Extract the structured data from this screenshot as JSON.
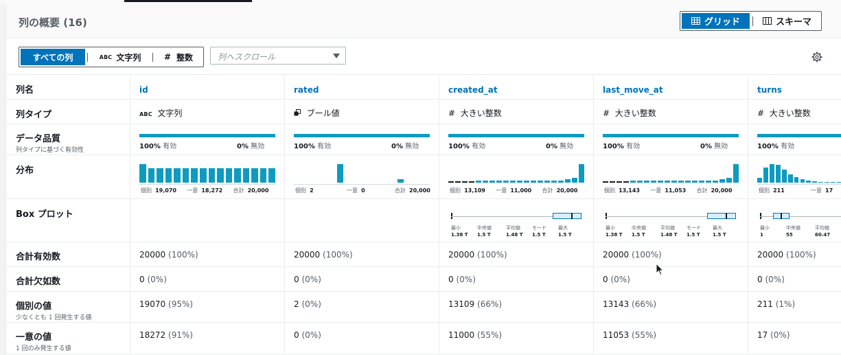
{
  "header": {
    "title": "列の概要 (16)",
    "view_grid": "グリッド",
    "view_schema": "スキーマ"
  },
  "filter": {
    "all": "すべての列",
    "string_icon": "ABC",
    "string": "文字列",
    "int_icon": "#",
    "int": "整数",
    "scroll_placeholder": "列へスクロール"
  },
  "row_labels": {
    "name": "列名",
    "type": "列タイプ",
    "quality": "データ品質",
    "quality_sub": "列タイプに基づく有効性",
    "distribution": "分布",
    "boxplot": "Box プロット",
    "total_valid": "合計有効数",
    "total_missing": "合計欠如数",
    "distinct": "個別の値",
    "distinct_sub": "少なくとも 1 回発生する値",
    "unique": "一意の値",
    "unique_sub": "1 回のみ発生する値"
  },
  "quality_labels": {
    "valid": "有効",
    "invalid": "無効"
  },
  "dist_labels": {
    "distinct": "個別",
    "unique": "一意",
    "total": "合計"
  },
  "box_labels": {
    "min": "最小",
    "median": "中央値",
    "mean": "平均値",
    "mode": "モード",
    "max": "最大"
  },
  "columns": [
    {
      "name": "id",
      "type_icon": "ABC",
      "type": "文字列",
      "quality_valid_pct": "100%",
      "quality_invalid_pct": "0%",
      "dist_distinct": "19,070",
      "dist_unique": "18,272",
      "dist_total": "20,000",
      "total_valid": "20000",
      "total_valid_pct": "(100%)",
      "total_missing": "0",
      "total_missing_pct": "(0%)",
      "distinct": "19070",
      "distinct_pct": "(95%)",
      "unique": "18272",
      "unique_pct": "(91%)"
    },
    {
      "name": "rated",
      "type_icon": "bool-icon",
      "type": "ブール値",
      "quality_valid_pct": "100%",
      "quality_invalid_pct": "0%",
      "dist_distinct": "2",
      "dist_unique": "0",
      "dist_total": "20,000",
      "total_valid": "20000",
      "total_valid_pct": "(100%)",
      "total_missing": "0",
      "total_missing_pct": "(0%)",
      "distinct": "2",
      "distinct_pct": "(0%)",
      "unique": "0",
      "unique_pct": "(0%)"
    },
    {
      "name": "created_at",
      "type_icon": "#",
      "type": "大きい整数",
      "quality_valid_pct": "100%",
      "quality_invalid_pct": "0%",
      "dist_distinct": "13,109",
      "dist_unique": "11,000",
      "dist_total": "20,000",
      "box_min": "1.38 T",
      "box_median": "1.5 T",
      "box_mean": "1.48 T",
      "box_mode": "1.5 T",
      "box_max": "1.5 T",
      "total_valid": "20000",
      "total_valid_pct": "(100%)",
      "total_missing": "0",
      "total_missing_pct": "(0%)",
      "distinct": "13109",
      "distinct_pct": "(66%)",
      "unique": "11000",
      "unique_pct": "(55%)"
    },
    {
      "name": "last_move_at",
      "type_icon": "#",
      "type": "大きい整数",
      "quality_valid_pct": "100%",
      "quality_invalid_pct": "0%",
      "dist_distinct": "13,143",
      "dist_unique": "11,053",
      "dist_total": "20,000",
      "box_min": "1.38 T",
      "box_median": "1.5 T",
      "box_mean": "1.48 T",
      "box_mode": "1.5 T",
      "box_max": "1.5 T",
      "total_valid": "20000",
      "total_valid_pct": "(100%)",
      "total_missing": "0",
      "total_missing_pct": "(0%)",
      "distinct": "13143",
      "distinct_pct": "(66%)",
      "unique": "11053",
      "unique_pct": "(55%)"
    },
    {
      "name": "turns",
      "type_icon": "#",
      "type": "大きい整数",
      "quality_valid_pct": "100%",
      "dist_distinct": "211",
      "dist_unique": "17",
      "box_min": "1",
      "box_median": "55",
      "box_mean": "60.47",
      "total_valid": "20000",
      "total_valid_pct": "(100%)",
      "total_missing": "0",
      "total_missing_pct": "(0%)",
      "distinct": "211",
      "distinct_pct": "(1%)",
      "unique": "17",
      "unique_pct": "(0%)"
    }
  ],
  "colors": {
    "accent": "#0073bb",
    "bar": "#0d9bc0",
    "text": "#16191f",
    "muted": "#545b64"
  }
}
